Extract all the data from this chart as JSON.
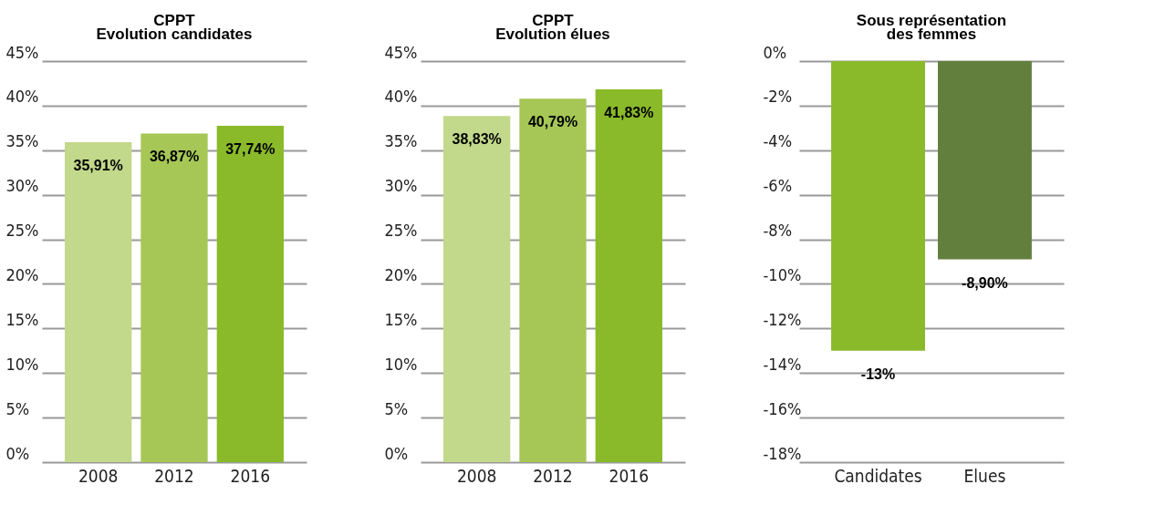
{
  "chart_data": [
    {
      "type": "bar",
      "title": "CPPT\nEvolution candidates",
      "categories": [
        "2008",
        "2012",
        "2016"
      ],
      "values": [
        35.91,
        36.87,
        37.74
      ],
      "colors": [
        "#c2d88a",
        "#a6c756",
        "#8aba2a"
      ],
      "ylim": [
        0,
        45
      ],
      "yticks": [
        {
          "value": 0,
          "label": "0%"
        },
        {
          "value": 5,
          "label": "5%"
        },
        {
          "value": 10,
          "label": "10%"
        },
        {
          "value": 15,
          "label": "15%"
        },
        {
          "value": 20,
          "label": "20%"
        },
        {
          "value": 25,
          "label": "25%"
        },
        {
          "value": 30,
          "label": "30%"
        },
        {
          "value": 35,
          "label": "35%"
        },
        {
          "value": 40,
          "label": "40%"
        },
        {
          "value": 45,
          "label": "45%"
        }
      ],
      "grid": "y",
      "value_labels": [
        "35,91%",
        "36,87%",
        "37,74%"
      ]
    },
    {
      "type": "bar",
      "title": "CPPT\nEvolution élues",
      "categories": [
        "2008",
        "2012",
        "2016"
      ],
      "values": [
        38.83,
        40.79,
        41.83
      ],
      "colors": [
        "#c2d88a",
        "#a6c756",
        "#8aba2a"
      ],
      "ylim": [
        0,
        45
      ],
      "yticks": [
        {
          "value": 0,
          "label": "0%"
        },
        {
          "value": 5,
          "label": "5%"
        },
        {
          "value": 10,
          "label": "10%"
        },
        {
          "value": 15,
          "label": "15%"
        },
        {
          "value": 20,
          "label": "20%"
        },
        {
          "value": 25,
          "label": "25%"
        },
        {
          "value": 30,
          "label": "30%"
        },
        {
          "value": 35,
          "label": "35%"
        },
        {
          "value": 40,
          "label": "40%"
        },
        {
          "value": 45,
          "label": "45%"
        }
      ],
      "grid": "y",
      "value_labels": [
        "38,83%",
        "40,79%",
        "41,83%"
      ]
    },
    {
      "type": "bar",
      "title": "Sous représentation\ndes femmes",
      "categories": [
        "Candidates",
        "Elues"
      ],
      "values": [
        -13,
        -8.9
      ],
      "colors": [
        "#8aba2a",
        "#627f3e"
      ],
      "ylim": [
        -18,
        0
      ],
      "yticks": [
        {
          "value": -18,
          "label": "-18%"
        },
        {
          "value": -16,
          "label": "-16%"
        },
        {
          "value": -14,
          "label": "-14%"
        },
        {
          "value": -12,
          "label": "-12%"
        },
        {
          "value": -10,
          "label": "-10%"
        },
        {
          "value": -8,
          "label": "-8%"
        },
        {
          "value": -6,
          "label": "-6%"
        },
        {
          "value": -4,
          "label": "-4%"
        },
        {
          "value": -2,
          "label": "-2%"
        },
        {
          "value": 0,
          "label": "0%"
        }
      ],
      "grid": "y",
      "value_labels": [
        "-13%",
        "-8,90%"
      ]
    }
  ]
}
